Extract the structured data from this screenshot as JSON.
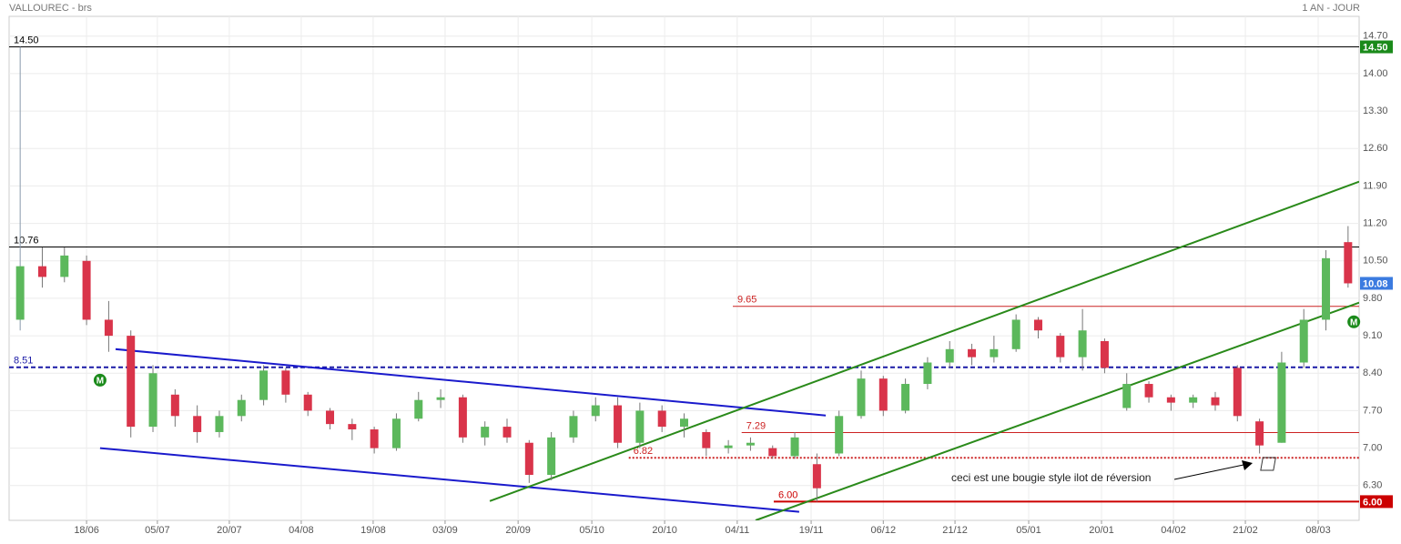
{
  "chart_data": {
    "type": "candlestick",
    "title": "VALLOUREC - brs",
    "subtitle": "1 AN - JOUR",
    "annotation": "ceci est une bougie style ilot de réversion",
    "up_color": "#5cb85c",
    "down_color": "#d9344a",
    "grid": true,
    "xlim": [
      -0.5,
      60.5
    ],
    "ylim": [
      5.65,
      15.07
    ],
    "xticks": [
      {
        "value": 3.0,
        "label": "18/06"
      },
      {
        "value": 6.2,
        "label": "05/07"
      },
      {
        "value": 9.45,
        "label": "20/07"
      },
      {
        "value": 12.7,
        "label": "04/08"
      },
      {
        "value": 15.95,
        "label": "19/08"
      },
      {
        "value": 19.2,
        "label": "03/09"
      },
      {
        "value": 22.5,
        "label": "20/09"
      },
      {
        "value": 25.83,
        "label": "05/10"
      },
      {
        "value": 29.12,
        "label": "20/10"
      },
      {
        "value": 32.4,
        "label": "04/11"
      },
      {
        "value": 35.74,
        "label": "19/11"
      },
      {
        "value": 39.0,
        "label": "06/12"
      },
      {
        "value": 42.24,
        "label": "21/12"
      },
      {
        "value": 45.57,
        "label": "05/01"
      },
      {
        "value": 48.86,
        "label": "20/01"
      },
      {
        "value": 52.11,
        "label": "04/02"
      },
      {
        "value": 55.36,
        "label": "21/02"
      },
      {
        "value": 58.65,
        "label": "08/03"
      }
    ],
    "yticks": [
      {
        "value": 14.7,
        "label": "14.70"
      },
      {
        "value": 14.0,
        "label": "14.00"
      },
      {
        "value": 13.3,
        "label": "13.30"
      },
      {
        "value": 12.6,
        "label": "12.60"
      },
      {
        "value": 11.9,
        "label": "11.90"
      },
      {
        "value": 11.2,
        "label": "11.20"
      },
      {
        "value": 10.5,
        "label": "10.50"
      },
      {
        "value": 9.8,
        "label": "9.80"
      },
      {
        "value": 9.1,
        "label": "9.10"
      },
      {
        "value": 8.4,
        "label": "8.40"
      },
      {
        "value": 7.7,
        "label": "7.70"
      },
      {
        "value": 7.0,
        "label": "7.00"
      },
      {
        "value": 6.3,
        "label": "6.30"
      }
    ],
    "open": [
      9.4,
      10.4,
      10.2,
      10.5,
      9.4,
      9.1,
      7.4,
      8.0,
      7.6,
      7.3,
      7.6,
      7.9,
      8.45,
      8.0,
      7.7,
      7.45,
      7.35,
      7.0,
      7.55,
      7.9,
      7.95,
      7.2,
      7.4,
      7.1,
      6.5,
      7.2,
      7.6,
      7.8,
      7.1,
      7.7,
      7.4,
      7.3,
      7.0,
      7.05,
      7.0,
      6.85,
      6.7,
      6.9,
      7.6,
      8.3,
      7.7,
      8.2,
      8.6,
      8.85,
      8.7,
      8.85,
      9.4,
      9.1,
      8.7,
      9.0,
      7.75,
      8.2,
      7.95,
      7.85,
      7.95,
      8.5,
      7.5,
      7.1,
      8.6,
      9.4,
      10.85
    ],
    "high": [
      14.5,
      10.75,
      10.75,
      10.6,
      9.75,
      9.2,
      8.55,
      8.1,
      7.8,
      7.7,
      8.0,
      8.55,
      8.5,
      8.05,
      7.75,
      7.55,
      7.4,
      7.65,
      8.05,
      8.1,
      8.0,
      7.5,
      7.55,
      7.15,
      7.3,
      7.7,
      7.95,
      7.95,
      7.85,
      7.8,
      7.65,
      7.35,
      7.15,
      7.2,
      7.05,
      7.3,
      6.9,
      7.7,
      8.45,
      8.35,
      8.3,
      8.7,
      9.0,
      8.95,
      9.1,
      9.5,
      9.45,
      9.15,
      9.6,
      9.05,
      8.4,
      8.25,
      8.0,
      8.0,
      8.05,
      8.55,
      7.55,
      8.8,
      9.6,
      10.7,
      11.15
    ],
    "low": [
      9.2,
      10.0,
      10.1,
      9.3,
      8.8,
      7.2,
      7.3,
      7.4,
      7.1,
      7.2,
      7.5,
      7.8,
      7.85,
      7.6,
      7.35,
      7.15,
      6.9,
      6.95,
      7.5,
      7.75,
      7.1,
      7.05,
      7.1,
      6.35,
      6.4,
      7.1,
      7.5,
      7.0,
      7.0,
      7.3,
      7.2,
      6.85,
      6.9,
      6.95,
      6.8,
      6.8,
      6.0,
      6.85,
      7.55,
      7.6,
      7.65,
      8.1,
      8.5,
      8.55,
      8.6,
      8.8,
      9.05,
      8.6,
      8.45,
      8.4,
      7.7,
      7.85,
      7.7,
      7.75,
      7.7,
      7.5,
      6.9,
      7.1,
      8.5,
      9.2,
      10.0
    ],
    "close": [
      10.4,
      10.2,
      10.6,
      9.4,
      9.1,
      7.4,
      8.4,
      7.6,
      7.3,
      7.6,
      7.9,
      8.45,
      8.0,
      7.7,
      7.45,
      7.35,
      7.0,
      7.55,
      7.9,
      7.95,
      7.2,
      7.4,
      7.2,
      6.5,
      7.2,
      7.6,
      7.8,
      7.1,
      7.7,
      7.4,
      7.55,
      7.0,
      7.05,
      7.1,
      6.85,
      7.2,
      6.25,
      7.6,
      8.3,
      7.7,
      8.2,
      8.6,
      8.85,
      8.7,
      8.85,
      9.4,
      9.2,
      8.7,
      9.2,
      8.5,
      8.2,
      7.95,
      7.85,
      7.95,
      7.8,
      7.6,
      7.05,
      8.6,
      9.4,
      10.55,
      10.08
    ],
    "levels": [
      {
        "value": 14.5,
        "label": "14.50",
        "color": "#000000",
        "style": "solid",
        "start": -0.5
      },
      {
        "value": 10.76,
        "color": "#000000",
        "style": "solid",
        "start": -0.5
      },
      {
        "value": 9.65,
        "color": "#cc2222",
        "style": "solid",
        "start": 32.2
      },
      {
        "value": 8.51,
        "color": "#1a1aa6",
        "style": "dashed",
        "start": -0.5
      },
      {
        "value": 7.29,
        "color": "#cc2222",
        "style": "solid",
        "start": 32.6
      },
      {
        "value": 6.82,
        "color": "#cc2222",
        "style": "dotted",
        "start": 27.5
      },
      {
        "value": 6.0,
        "label": "6.00",
        "color": "#cc0000",
        "style": "thick",
        "start": 34.05
      }
    ],
    "badges": [
      {
        "value": 14.5,
        "label": "14.50",
        "color": "#1a8a1a"
      },
      {
        "value": 10.08,
        "color": "#3b7be0"
      },
      {
        "value": 6.0,
        "label": "6.00",
        "color": "#cc0000"
      }
    ],
    "trendlines": [
      {
        "x": [
          4.31,
          36.4
        ],
        "y": [
          8.85,
          7.61
        ],
        "color": "#1a1acc"
      },
      {
        "x": [
          3.61,
          35.2
        ],
        "y": [
          7.0,
          5.81
        ],
        "color": "#1a1acc"
      },
      {
        "x": [
          21.22,
          60.5
        ],
        "y": [
          6.01,
          11.98
        ],
        "color": "#2a8a1a"
      },
      {
        "x": [
          33.23,
          60.5
        ],
        "y": [
          5.65,
          9.72
        ],
        "color": "#2a8a1a"
      }
    ],
    "markers": [
      {
        "label": "M",
        "x": 3.61,
        "y": 8.27
      },
      {
        "label": "M",
        "x": 60.26,
        "y": 9.36
      }
    ]
  }
}
